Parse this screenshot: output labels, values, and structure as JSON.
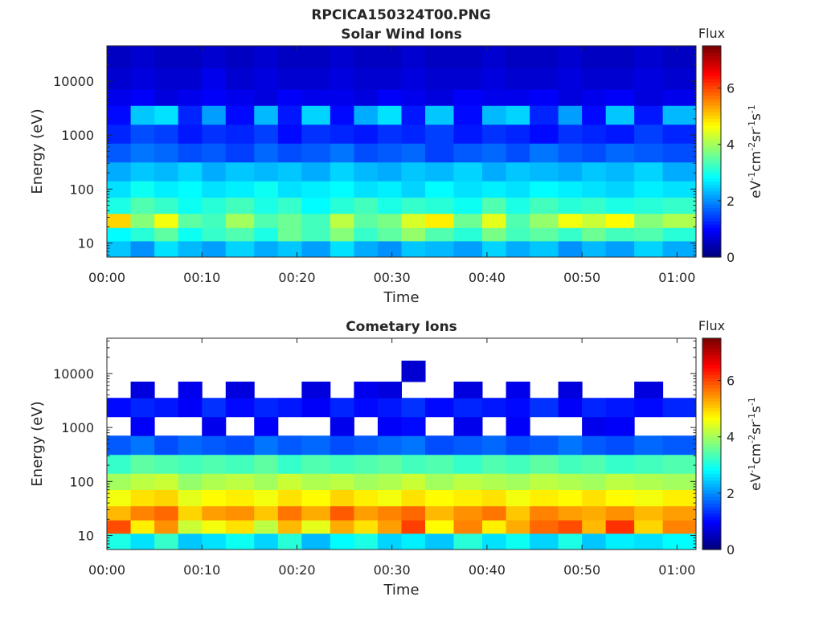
{
  "figure_title": "RPCICA150324T00.PNG",
  "chart_data": [
    {
      "type": "heatmap",
      "title": "Solar Wind Ions",
      "xlabel": "Time",
      "ylabel": "Energy (eV)",
      "x_ticks": [
        "00:00",
        "00:10",
        "00:20",
        "00:30",
        "00:40",
        "00:50",
        "01:00"
      ],
      "x_tick_minutes": [
        0,
        10,
        20,
        30,
        40,
        50,
        60
      ],
      "xlim_minutes": [
        0,
        62
      ],
      "y_scale": "log",
      "y_ticks": [
        "10",
        "100",
        "1000",
        "10000"
      ],
      "y_tick_values": [
        10,
        100,
        1000,
        10000
      ],
      "ylim": [
        5.5,
        45000
      ],
      "colorbar": {
        "title": "Flux",
        "label": "eV-1cm-2sr-1s-1",
        "ticks": [
          "0",
          "2",
          "4",
          "6"
        ],
        "tick_values": [
          0,
          2,
          4,
          6
        ],
        "range": [
          0,
          7.5
        ]
      },
      "colormap": "jet",
      "grid": false,
      "x_minutes_coarse": [
        1,
        4,
        6,
        9,
        11,
        14,
        17,
        19,
        22,
        25,
        27,
        30,
        32,
        35,
        38,
        41,
        43,
        46,
        49,
        51,
        54,
        57,
        60
      ],
      "energy_ev": [
        8,
        15,
        25,
        50,
        100,
        200,
        500,
        1000,
        2500,
        5000,
        10000,
        30000
      ],
      "flux_log10": [
        [
          2.4,
          2.0,
          2.6,
          2.3,
          2.1,
          2.5,
          2.2,
          2.4,
          2.1,
          2.6,
          2.2,
          2.0,
          2.4,
          2.3,
          2.1,
          2.5,
          2.2,
          2.4,
          2.0,
          2.3,
          2.1,
          2.5,
          2.2
        ],
        [
          2.8,
          3.1,
          3.5,
          2.9,
          3.2,
          3.4,
          3.0,
          3.6,
          3.3,
          3.8,
          3.2,
          3.5,
          3.9,
          3.4,
          3.1,
          3.7,
          3.3,
          3.5,
          3.2,
          3.6,
          3.3,
          3.4,
          3.1
        ],
        [
          5.0,
          3.8,
          4.6,
          3.5,
          3.3,
          4.0,
          3.4,
          3.6,
          3.3,
          4.2,
          3.5,
          3.7,
          4.4,
          4.8,
          3.6,
          4.5,
          3.4,
          3.9,
          4.6,
          4.3,
          4.7,
          3.8,
          4.1
        ],
        [
          3.0,
          3.4,
          3.2,
          2.9,
          3.1,
          3.3,
          3.0,
          3.2,
          2.8,
          3.1,
          3.3,
          3.0,
          3.2,
          3.1,
          2.9,
          3.4,
          3.0,
          3.3,
          3.1,
          3.2,
          3.0,
          3.1,
          3.2
        ],
        [
          2.6,
          2.9,
          2.7,
          2.8,
          2.6,
          2.7,
          2.9,
          2.6,
          2.7,
          2.8,
          2.6,
          2.7,
          2.5,
          2.8,
          2.6,
          2.7,
          2.6,
          2.8,
          2.7,
          2.6,
          2.5,
          2.7,
          2.6
        ],
        [
          2.2,
          2.4,
          2.3,
          2.5,
          2.2,
          2.4,
          2.3,
          2.4,
          2.2,
          2.5,
          2.3,
          2.2,
          2.4,
          2.3,
          2.5,
          2.2,
          2.4,
          2.3,
          2.2,
          2.4,
          2.3,
          2.5,
          2.2
        ],
        [
          1.6,
          1.8,
          1.7,
          1.5,
          1.6,
          1.4,
          1.7,
          1.5,
          1.6,
          1.8,
          1.5,
          1.6,
          1.7,
          1.4,
          1.6,
          1.7,
          1.5,
          1.8,
          1.6,
          1.5,
          1.7,
          1.6,
          1.5
        ],
        [
          1.2,
          1.5,
          1.4,
          1.1,
          1.3,
          1.2,
          1.4,
          1.0,
          1.3,
          1.2,
          1.1,
          1.3,
          1.2,
          1.4,
          1.1,
          1.3,
          1.2,
          1.0,
          1.3,
          1.2,
          1.1,
          1.4,
          1.2
        ],
        [
          1.0,
          2.4,
          2.6,
          1.2,
          2.1,
          1.0,
          2.3,
          1.1,
          2.5,
          1.0,
          2.2,
          2.6,
          1.1,
          2.4,
          1.0,
          2.3,
          2.5,
          1.2,
          2.1,
          1.0,
          2.4,
          1.1,
          2.3
        ],
        [
          0.8,
          0.9,
          0.7,
          0.8,
          0.9,
          0.8,
          0.7,
          0.9,
          0.8,
          0.8,
          0.7,
          0.9,
          0.8,
          0.7,
          0.9,
          0.8,
          0.8,
          0.9,
          0.7,
          0.8,
          0.9,
          0.7,
          0.8
        ],
        [
          0.6,
          0.7,
          0.6,
          0.6,
          0.8,
          0.6,
          0.7,
          0.6,
          0.6,
          0.7,
          0.6,
          0.6,
          0.7,
          0.6,
          0.6,
          0.7,
          0.6,
          0.6,
          0.7,
          0.6,
          0.6,
          0.7,
          0.6
        ],
        [
          0.5,
          0.6,
          0.5,
          0.5,
          0.6,
          0.5,
          0.6,
          0.5,
          0.5,
          0.6,
          0.5,
          0.5,
          0.6,
          0.5,
          0.5,
          0.6,
          0.5,
          0.5,
          0.6,
          0.5,
          0.5,
          0.6,
          0.5
        ]
      ]
    },
    {
      "type": "heatmap",
      "title": "Cometary Ions",
      "xlabel": "Time",
      "ylabel": "Energy (eV)",
      "x_ticks": [
        "00:00",
        "00:10",
        "00:20",
        "00:30",
        "00:40",
        "00:50",
        "01:00"
      ],
      "x_tick_minutes": [
        0,
        10,
        20,
        30,
        40,
        50,
        60
      ],
      "xlim_minutes": [
        0,
        62
      ],
      "y_scale": "log",
      "y_ticks": [
        "10",
        "100",
        "1000",
        "10000"
      ],
      "y_tick_values": [
        10,
        100,
        1000,
        10000
      ],
      "ylim": [
        5.5,
        45000
      ],
      "colorbar": {
        "title": "Flux",
        "label": "eV-1cm-2sr-1s-1",
        "ticks": [
          "0",
          "2",
          "4",
          "6"
        ],
        "tick_values": [
          0,
          2,
          4,
          6
        ],
        "range": [
          0,
          7.5
        ]
      },
      "colormap": "jet",
      "grid": false,
      "x_minutes_coarse": [
        1,
        4,
        6,
        9,
        11,
        14,
        17,
        19,
        22,
        25,
        27,
        30,
        32,
        35,
        38,
        41,
        43,
        46,
        49,
        51,
        54,
        57,
        60
      ],
      "energy_ev": [
        8,
        15,
        25,
        50,
        100,
        200,
        500,
        1000,
        2500,
        5000,
        10000,
        30000
      ],
      "flux_log10": [
        [
          3.0,
          2.6,
          3.2,
          2.4,
          2.6,
          2.9,
          2.5,
          3.1,
          2.3,
          2.8,
          3.0,
          2.5,
          2.7,
          2.4,
          3.1,
          2.6,
          2.9,
          2.5,
          3.0,
          2.4,
          2.7,
          2.6,
          2.8
        ],
        [
          6.0,
          4.8,
          5.5,
          4.3,
          4.6,
          4.9,
          4.2,
          5.2,
          4.5,
          5.3,
          4.9,
          5.4,
          6.1,
          4.7,
          5.6,
          4.8,
          5.3,
          5.8,
          6.0,
          5.2,
          6.2,
          5.0,
          5.6
        ],
        [
          5.2,
          5.6,
          5.8,
          5.0,
          5.4,
          5.5,
          5.1,
          5.7,
          5.3,
          5.9,
          5.4,
          5.6,
          5.8,
          5.2,
          5.5,
          5.7,
          5.1,
          5.6,
          5.4,
          5.3,
          5.5,
          5.2,
          5.4
        ],
        [
          4.6,
          4.9,
          5.0,
          4.5,
          4.7,
          4.8,
          4.6,
          4.9,
          4.7,
          5.0,
          4.8,
          4.6,
          4.9,
          4.7,
          4.8,
          4.9,
          4.6,
          4.8,
          4.7,
          4.9,
          4.7,
          4.6,
          4.8
        ],
        [
          4.0,
          4.2,
          4.3,
          3.9,
          4.1,
          4.2,
          4.0,
          4.3,
          4.1,
          4.2,
          4.0,
          4.1,
          4.3,
          4.0,
          4.2,
          4.1,
          4.0,
          4.2,
          4.1,
          4.0,
          4.2,
          4.1,
          4.0
        ],
        [
          3.2,
          3.5,
          3.4,
          3.3,
          3.4,
          3.3,
          3.5,
          3.2,
          3.4,
          3.3,
          3.4,
          3.5,
          3.3,
          3.4,
          3.2,
          3.4,
          3.3,
          3.5,
          3.3,
          3.4,
          3.2,
          3.3,
          3.4
        ],
        [
          1.6,
          1.8,
          1.5,
          1.7,
          1.6,
          1.5,
          1.8,
          1.6,
          1.7,
          1.5,
          1.6,
          1.7,
          1.8,
          1.5,
          1.6,
          1.7,
          1.5,
          1.6,
          1.8,
          1.6,
          1.5,
          1.7,
          1.6
        ],
        [
          0.0,
          0.9,
          0.0,
          0.0,
          0.8,
          0.0,
          0.9,
          0.0,
          0.0,
          0.8,
          0.0,
          0.9,
          1.0,
          0.0,
          0.8,
          0.0,
          0.9,
          0.0,
          0.0,
          0.8,
          0.9,
          0.0,
          0.0
        ],
        [
          1.0,
          1.2,
          1.1,
          0.9,
          1.3,
          1.0,
          1.2,
          1.1,
          0.9,
          1.2,
          1.0,
          1.1,
          1.3,
          1.0,
          1.2,
          1.1,
          1.0,
          1.3,
          0.9,
          1.2,
          1.1,
          1.0,
          1.2
        ],
        [
          0.0,
          0.7,
          0.0,
          0.8,
          0.0,
          0.7,
          0.0,
          0.0,
          0.7,
          0.0,
          0.8,
          0.7,
          0.0,
          0.0,
          0.7,
          0.0,
          0.8,
          0.0,
          0.7,
          0.0,
          0.0,
          0.7,
          0.0
        ],
        [
          0.0,
          0.0,
          0.0,
          0.0,
          0.0,
          0.0,
          0.0,
          0.0,
          0.0,
          0.0,
          0.0,
          0.0,
          0.6,
          0.0,
          0.0,
          0.0,
          0.0,
          0.0,
          0.0,
          0.0,
          0.0,
          0.0,
          0.0
        ],
        [
          0.0,
          0.0,
          0.0,
          0.0,
          0.0,
          0.0,
          0.0,
          0.0,
          0.0,
          0.0,
          0.0,
          0.0,
          0.0,
          0.0,
          0.0,
          0.0,
          0.0,
          0.0,
          0.0,
          0.0,
          0.0,
          0.0,
          0.0
        ]
      ]
    }
  ]
}
